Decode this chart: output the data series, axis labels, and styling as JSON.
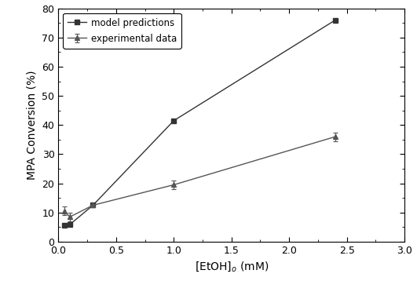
{
  "model_x": [
    0.05,
    0.1,
    0.3,
    1.0,
    2.4
  ],
  "model_y": [
    5.5,
    5.9,
    12.5,
    41.5,
    76.0
  ],
  "exp_x": [
    0.05,
    0.1,
    0.3,
    1.0,
    2.4
  ],
  "exp_y": [
    10.5,
    8.5,
    12.5,
    19.5,
    36.0
  ],
  "exp_yerr": [
    1.5,
    1.5,
    0.5,
    1.5,
    1.5
  ],
  "model_color": "#333333",
  "exp_color": "#555555",
  "xlabel": "[EtOH]$_o$ (mM)",
  "ylabel": "MPA Conversion (%)",
  "xlim": [
    0,
    3
  ],
  "ylim": [
    0,
    80
  ],
  "xticks": [
    0,
    0.5,
    1.0,
    1.5,
    2.0,
    2.5,
    3.0
  ],
  "yticks": [
    0,
    10,
    20,
    30,
    40,
    50,
    60,
    70,
    80
  ],
  "legend_model": "model predictions",
  "legend_exp": "experimental data",
  "background_color": "#ffffff",
  "figsize": [
    5.31,
    3.58
  ],
  "dpi": 100
}
